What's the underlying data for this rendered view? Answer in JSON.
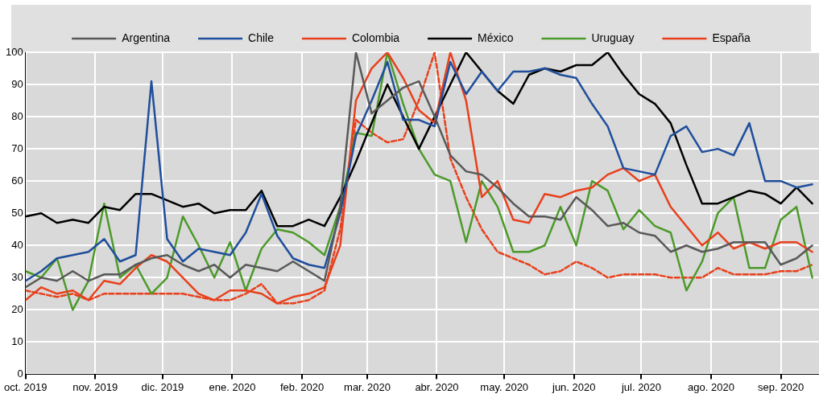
{
  "chart_data": {
    "type": "line",
    "legend": "top",
    "grid": true,
    "marker": "none",
    "line_style": "solid",
    "x": [
      "2019-10-01",
      "2019-10-08",
      "2019-10-15",
      "2019-10-22",
      "2019-10-29",
      "2019-11-05",
      "2019-11-12",
      "2019-11-19",
      "2019-11-26",
      "2019-12-03",
      "2019-12-10",
      "2019-12-17",
      "2019-12-24",
      "2019-12-31",
      "2020-01-07",
      "2020-01-14",
      "2020-01-21",
      "2020-01-28",
      "2020-02-04",
      "2020-02-11",
      "2020-02-18",
      "2020-02-25",
      "2020-03-03",
      "2020-03-10",
      "2020-03-17",
      "2020-03-24",
      "2020-03-31",
      "2020-04-07",
      "2020-04-14",
      "2020-04-21",
      "2020-04-28",
      "2020-05-05",
      "2020-05-12",
      "2020-05-19",
      "2020-05-26",
      "2020-06-02",
      "2020-06-09",
      "2020-06-16",
      "2020-06-23",
      "2020-06-30",
      "2020-07-07",
      "2020-07-14",
      "2020-07-21",
      "2020-07-28",
      "2020-08-04",
      "2020-08-11",
      "2020-08-18",
      "2020-08-25",
      "2020-09-01",
      "2020-09-08",
      "2020-09-15"
    ],
    "xlim": [
      "2019-10-01",
      "2020-09-18"
    ],
    "xticks": [
      {
        "value": "2019-10-01",
        "label": "oct. 2019"
      },
      {
        "value": "2019-11-01",
        "label": "nov. 2019"
      },
      {
        "value": "2019-12-01",
        "label": "dic. 2019"
      },
      {
        "value": "2020-01-01",
        "label": "ene. 2020"
      },
      {
        "value": "2020-02-01",
        "label": "feb. 2020"
      },
      {
        "value": "2020-03-01",
        "label": "mar. 2020"
      },
      {
        "value": "2020-04-01",
        "label": "abr. 2020"
      },
      {
        "value": "2020-05-01",
        "label": "may. 2020"
      },
      {
        "value": "2020-06-01",
        "label": "jun. 2020"
      },
      {
        "value": "2020-07-01",
        "label": "jul. 2020"
      },
      {
        "value": "2020-08-01",
        "label": "ago. 2020"
      },
      {
        "value": "2020-09-01",
        "label": "sep. 2020"
      }
    ],
    "ylim": [
      0,
      100
    ],
    "yticks": [
      0,
      10,
      20,
      30,
      40,
      50,
      60,
      70,
      80,
      90,
      100
    ],
    "series": [
      {
        "name": "Argentina",
        "color": "#595959",
        "values": [
          27,
          30,
          29,
          32,
          29,
          31,
          31,
          34,
          36,
          37,
          34,
          32,
          34,
          30,
          34,
          33,
          32,
          35,
          32,
          29,
          52,
          100,
          81,
          85,
          89,
          91,
          80,
          68,
          63,
          62,
          58,
          53,
          49,
          49,
          48,
          55,
          51,
          46,
          47,
          44,
          43,
          38,
          40,
          38,
          39,
          41,
          41,
          41,
          34,
          36,
          40
        ]
      },
      {
        "name": "Chile",
        "color": "#1f4e9c",
        "values": [
          29,
          32,
          36,
          37,
          38,
          42,
          35,
          37,
          91,
          42,
          35,
          39,
          38,
          37,
          44,
          56,
          43,
          36,
          34,
          33,
          50,
          74,
          85,
          97,
          79,
          79,
          77,
          97,
          87,
          94,
          88,
          94,
          94,
          95,
          93,
          92,
          84,
          77,
          64,
          63,
          62,
          74,
          77,
          69,
          70,
          68,
          78,
          60,
          60,
          58,
          59
        ]
      },
      {
        "name": "Colombia",
        "color": "#e8401c",
        "values": [
          23,
          27,
          25,
          26,
          23,
          29,
          28,
          33,
          37,
          35,
          30,
          25,
          23,
          26,
          26,
          25,
          22,
          24,
          25,
          27,
          40,
          85,
          95,
          100,
          92,
          82,
          78,
          100,
          85,
          55,
          60,
          48,
          47,
          56,
          55,
          57,
          58,
          62,
          64,
          60,
          62,
          52,
          46,
          40,
          44,
          39,
          41,
          39,
          41,
          41,
          38
        ]
      },
      {
        "name": "México",
        "color": "#000000",
        "values": [
          49,
          50,
          47,
          48,
          47,
          52,
          51,
          56,
          56,
          54,
          52,
          53,
          50,
          51,
          51,
          57,
          46,
          46,
          48,
          46,
          55,
          66,
          78,
          90,
          80,
          70,
          80,
          90,
          100,
          94,
          88,
          84,
          93,
          95,
          94,
          96,
          96,
          100,
          93,
          87,
          84,
          78,
          65,
          53,
          53,
          55,
          57,
          56,
          53,
          58,
          53
        ]
      },
      {
        "name": "Uruguay",
        "color": "#4c9a2a",
        "values": [
          32,
          30,
          36,
          20,
          29,
          53,
          30,
          34,
          25,
          30,
          49,
          40,
          30,
          41,
          26,
          39,
          45,
          44,
          41,
          37,
          52,
          75,
          74,
          100,
          84,
          70,
          62,
          60,
          41,
          60,
          52,
          38,
          38,
          40,
          52,
          40,
          60,
          57,
          45,
          51,
          46,
          44,
          26,
          35,
          50,
          55,
          33,
          33,
          48,
          52,
          30
        ]
      },
      {
        "name": "España",
        "color": "#e8401c",
        "line_style": "dashed",
        "values": [
          26,
          25,
          24,
          25,
          23,
          25,
          25,
          25,
          25,
          25,
          25,
          24,
          23,
          23,
          25,
          28,
          22,
          22,
          23,
          26,
          45,
          79,
          75,
          72,
          73,
          85,
          100,
          67,
          55,
          45,
          38,
          36,
          34,
          31,
          32,
          35,
          33,
          30,
          31,
          31,
          31,
          30,
          30,
          30,
          33,
          31,
          31,
          31,
          32,
          32,
          34
        ]
      }
    ]
  }
}
